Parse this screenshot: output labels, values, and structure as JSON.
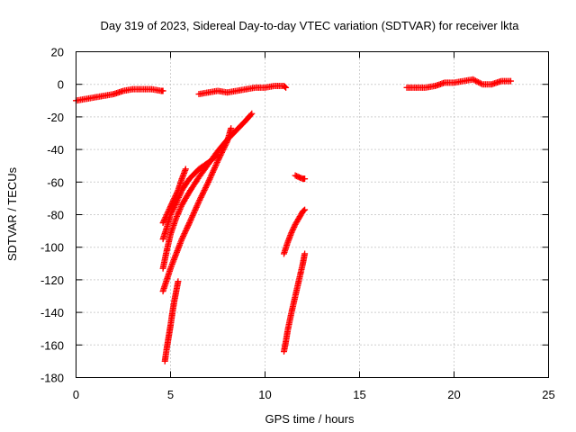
{
  "chart_data": {
    "type": "scatter",
    "title": "Day 319 of 2023, Sidereal Day-to-day VTEC variation (SDTVAR) for receiver lkta",
    "xlabel": "GPS time / hours",
    "ylabel": "SDTVAR / TECUs",
    "xlim": [
      0,
      25
    ],
    "ylim": [
      -180,
      20
    ],
    "xticks": [
      "0",
      "5",
      "10",
      "15",
      "20",
      "25"
    ],
    "yticks": [
      "20",
      "0",
      "-20",
      "-40",
      "-60",
      "-80",
      "-100",
      "-120",
      "-140",
      "-160",
      "-180"
    ],
    "grid": true,
    "marker": "+",
    "color": "#ff0000",
    "series": [
      {
        "x": [
          0.0,
          0.5,
          1.0,
          1.5,
          2.0,
          2.5,
          3.0,
          3.5,
          4.0,
          4.5,
          4.6
        ],
        "y": [
          -10,
          -9,
          -8,
          -7,
          -6,
          -4,
          -3,
          -3,
          -3,
          -4,
          -4
        ]
      },
      {
        "x": [
          6.5,
          7.0,
          7.5,
          8.0,
          8.5,
          9.0,
          9.5,
          10.0,
          10.5,
          11.0,
          11.1
        ],
        "y": [
          -6,
          -5,
          -4,
          -5,
          -4,
          -3,
          -2,
          -2,
          -1,
          -1,
          -2
        ]
      },
      {
        "x": [
          17.5,
          18.0,
          18.5,
          19.0,
          19.5,
          20.0,
          20.5,
          21.0,
          21.5,
          22.0,
          22.5,
          23.0
        ],
        "y": [
          -2,
          -2,
          -2,
          -1,
          1,
          1,
          2,
          3,
          0,
          0,
          2,
          2
        ]
      },
      {
        "x": [
          4.6,
          4.8,
          5.0,
          5.2,
          5.4,
          5.6,
          5.8
        ],
        "y": [
          -85,
          -80,
          -75,
          -70,
          -65,
          -58,
          -52
        ]
      },
      {
        "x": [
          4.6,
          4.8,
          5.0,
          5.3,
          5.6,
          6.0,
          6.5,
          7.0,
          7.5,
          8.0,
          8.5,
          9.0,
          9.3
        ],
        "y": [
          -113,
          -102,
          -92,
          -82,
          -74,
          -66,
          -57,
          -49,
          -41,
          -34,
          -28,
          -22,
          -18
        ]
      },
      {
        "x": [
          4.6,
          4.8,
          5.0,
          5.3,
          5.6,
          6.0,
          6.5,
          7.0,
          7.5,
          8.0,
          8.2
        ],
        "y": [
          -127,
          -120,
          -113,
          -104,
          -95,
          -85,
          -72,
          -60,
          -47,
          -35,
          -27
        ]
      },
      {
        "x": [
          4.6,
          4.8,
          5.0,
          5.3,
          5.6,
          6.0,
          6.5,
          7.0,
          7.5
        ],
        "y": [
          -95,
          -88,
          -80,
          -73,
          -65,
          -58,
          -52,
          -48,
          -43
        ]
      },
      {
        "x": [
          4.7,
          4.8,
          4.9,
          5.0,
          5.1,
          5.2,
          5.3,
          5.4
        ],
        "y": [
          -170,
          -162,
          -155,
          -148,
          -140,
          -133,
          -127,
          -121
        ]
      },
      {
        "x": [
          11.0,
          11.2,
          11.4,
          11.6,
          11.8,
          12.0,
          12.1
        ],
        "y": [
          -104,
          -97,
          -91,
          -86,
          -82,
          -78,
          -77
        ]
      },
      {
        "x": [
          11.0,
          11.1,
          11.2,
          11.4,
          11.6,
          11.8,
          12.0,
          12.1
        ],
        "y": [
          -164,
          -158,
          -151,
          -140,
          -130,
          -120,
          -110,
          -104
        ]
      },
      {
        "x": [
          11.6,
          11.8,
          12.0,
          12.1
        ],
        "y": [
          -56,
          -57,
          -58,
          -58
        ]
      }
    ]
  }
}
